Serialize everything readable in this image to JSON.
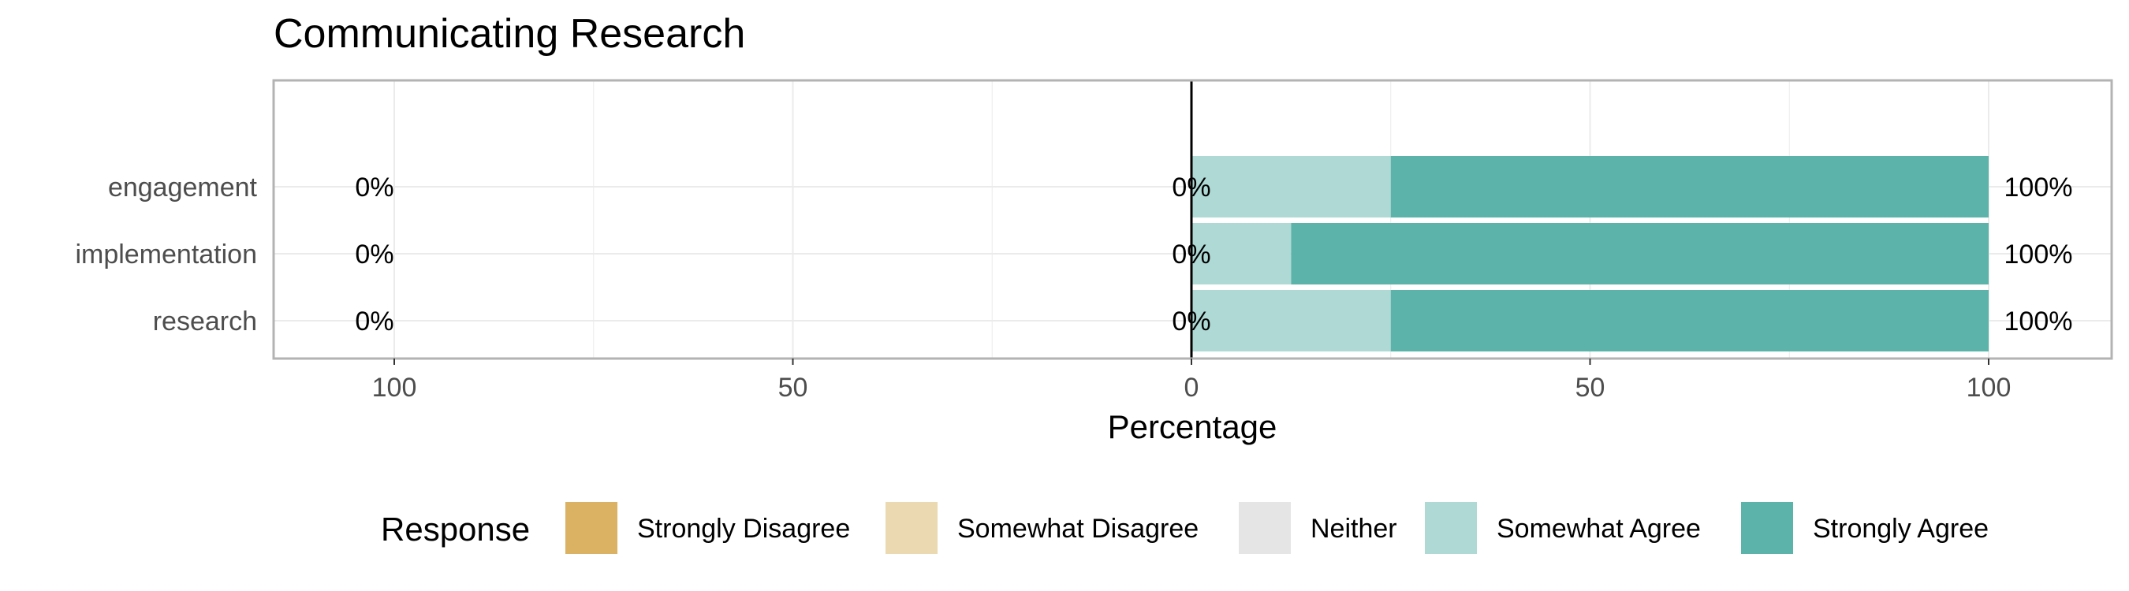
{
  "chart_data": {
    "type": "bar",
    "orientation": "horizontal",
    "stacking": "diverging",
    "title": "Communicating Research",
    "xlabel": "Percentage",
    "ylabel": "",
    "xlim": [
      -100,
      100
    ],
    "x_ticks": [
      -100,
      -50,
      0,
      50,
      100
    ],
    "x_tick_labels": [
      "100",
      "50",
      "0",
      "50",
      "100"
    ],
    "grid": true,
    "categories": [
      "engagement",
      "implementation",
      "research"
    ],
    "series": [
      {
        "name": "Strongly Disagree",
        "color": "#dbb163",
        "values": [
          0,
          0,
          0
        ]
      },
      {
        "name": "Somewhat Disagree",
        "color": "#ebd9b1",
        "values": [
          0,
          0,
          0
        ]
      },
      {
        "name": "Neither",
        "color": "#e5e5e5",
        "values": [
          0,
          0,
          0
        ]
      },
      {
        "name": "Somewhat Agree",
        "color": "#aed9d5",
        "values": [
          25,
          12.5,
          25
        ]
      },
      {
        "name": "Strongly Agree",
        "color": "#5bb3a9",
        "values": [
          75,
          87.5,
          75
        ]
      }
    ],
    "left_labels": [
      "0%",
      "0%",
      "0%"
    ],
    "center_labels": [
      "0%",
      "0%",
      "0%"
    ],
    "right_labels": [
      "100%",
      "100%",
      "100%"
    ],
    "legend": {
      "title": "Response",
      "placement": "bottom"
    }
  }
}
